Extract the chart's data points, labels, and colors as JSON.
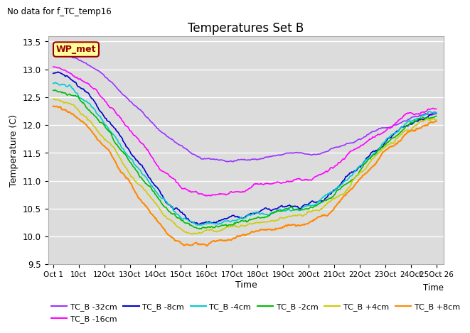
{
  "title": "Temperatures Set B",
  "subtitle": "No data for f_TC_temp16",
  "ylabel": "Temperature (C)",
  "xlabel": "Time",
  "ylim": [
    9.5,
    13.6
  ],
  "yticks": [
    9.5,
    10.0,
    10.5,
    11.0,
    11.5,
    12.0,
    12.5,
    13.0,
    13.5
  ],
  "xtick_labels": [
    "Oct 1",
    "10ct",
    "12Oct",
    "13Oct",
    "14Oct",
    "15Oct",
    "16Oct",
    "17Oct",
    "18Oct",
    "19Oct",
    "20Oct",
    "21Oct",
    "22Oct",
    "23Oct",
    "24Oct",
    "25Oct 26"
  ],
  "xtick_pos": [
    0,
    1,
    2,
    3,
    4,
    5,
    6,
    7,
    8,
    9,
    10,
    11,
    12,
    13,
    14,
    15
  ],
  "n_points": 500,
  "series": [
    {
      "label": "TC_B -32cm",
      "color": "#9933FF",
      "lw": 1.2
    },
    {
      "label": "TC_B -16cm",
      "color": "#FF00FF",
      "lw": 1.2
    },
    {
      "label": "TC_B -8cm",
      "color": "#0000CC",
      "lw": 1.2
    },
    {
      "label": "TC_B -4cm",
      "color": "#00CCCC",
      "lw": 1.2
    },
    {
      "label": "TC_B -2cm",
      "color": "#00BB00",
      "lw": 1.2
    },
    {
      "label": "TC_B +4cm",
      "color": "#CCCC00",
      "lw": 1.2
    },
    {
      "label": "TC_B +8cm",
      "color": "#FF8800",
      "lw": 1.5
    }
  ],
  "wp_met_label": "WP_met",
  "wp_met_color": "#990000",
  "wp_met_bg": "#FFFF99",
  "bg_color": "#DCDCDC",
  "grid_color": "#FFFFFF",
  "legend_fontsize": 8,
  "axis_fontsize": 9,
  "title_fontsize": 12
}
